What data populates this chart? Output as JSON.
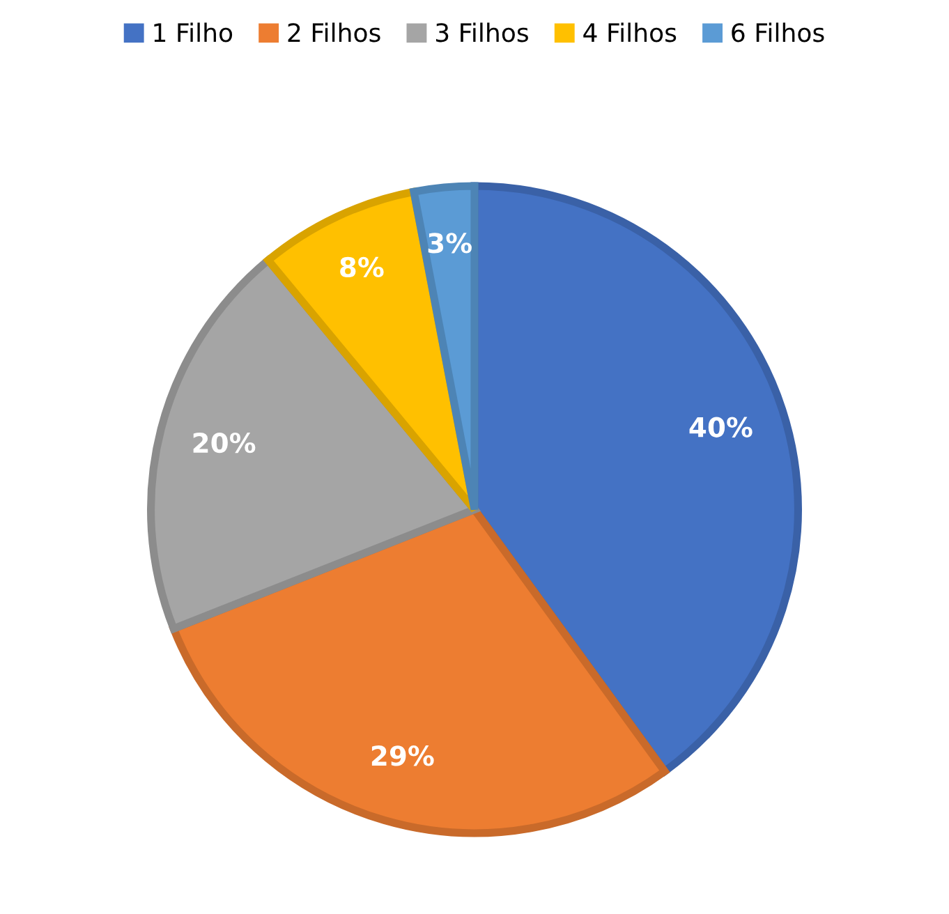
{
  "chart_data": {
    "type": "pie",
    "categories": [
      "1 Filho",
      "2 Filhos",
      "3 Filhos",
      "4 Filhos",
      "6 Filhos"
    ],
    "values": [
      40,
      29,
      20,
      8,
      3
    ],
    "value_labels": [
      "40%",
      "29%",
      "20%",
      "8%",
      "3%"
    ],
    "colors": [
      "#4472c4",
      "#ed7d31",
      "#a5a5a5",
      "#ffc000",
      "#5b9bd5"
    ],
    "legend": "top"
  }
}
